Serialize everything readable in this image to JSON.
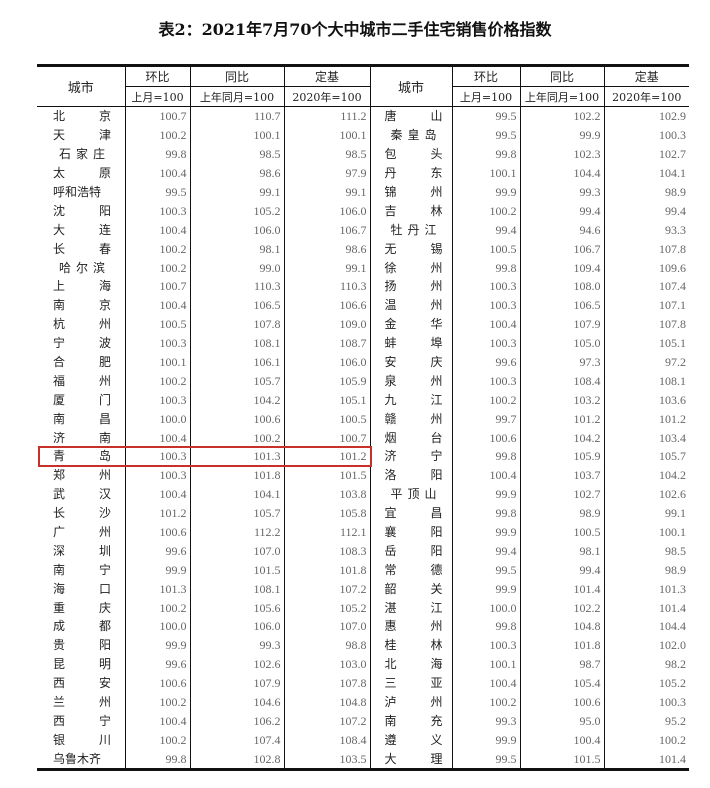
{
  "title": "表2：2021年7月70个大中城市二手住宅销售价格指数",
  "header": {
    "city": "城市",
    "mom": "环比",
    "mom_base": "上月=100",
    "yoy": "同比",
    "yoy_base": "上年同月=100",
    "fixed": "定基",
    "fixed_base": "2020年=100"
  },
  "highlight_color": "#c8302a",
  "highlighted_city": "青岛",
  "left": [
    {
      "city": "北京",
      "mom": "100.7",
      "yoy": "110.7",
      "fixed": "111.2"
    },
    {
      "city": "天津",
      "mom": "100.2",
      "yoy": "100.1",
      "fixed": "100.1"
    },
    {
      "city": "石家庄",
      "mom": "99.8",
      "yoy": "98.5",
      "fixed": "98.5"
    },
    {
      "city": "太原",
      "mom": "100.4",
      "yoy": "98.6",
      "fixed": "97.9"
    },
    {
      "city": "呼和浩特",
      "mom": "99.5",
      "yoy": "99.1",
      "fixed": "99.1"
    },
    {
      "city": "沈阳",
      "mom": "100.3",
      "yoy": "105.2",
      "fixed": "106.0"
    },
    {
      "city": "大连",
      "mom": "100.4",
      "yoy": "106.0",
      "fixed": "106.7"
    },
    {
      "city": "长春",
      "mom": "100.2",
      "yoy": "98.1",
      "fixed": "98.6"
    },
    {
      "city": "哈尔滨",
      "mom": "100.2",
      "yoy": "99.0",
      "fixed": "99.1"
    },
    {
      "city": "上海",
      "mom": "100.7",
      "yoy": "110.3",
      "fixed": "110.3"
    },
    {
      "city": "南京",
      "mom": "100.4",
      "yoy": "106.5",
      "fixed": "106.6"
    },
    {
      "city": "杭州",
      "mom": "100.5",
      "yoy": "107.8",
      "fixed": "109.0"
    },
    {
      "city": "宁波",
      "mom": "100.3",
      "yoy": "108.1",
      "fixed": "108.7"
    },
    {
      "city": "合肥",
      "mom": "100.1",
      "yoy": "106.1",
      "fixed": "106.0"
    },
    {
      "city": "福州",
      "mom": "100.2",
      "yoy": "105.7",
      "fixed": "105.9"
    },
    {
      "city": "厦门",
      "mom": "100.3",
      "yoy": "104.2",
      "fixed": "105.1"
    },
    {
      "city": "南昌",
      "mom": "100.0",
      "yoy": "100.6",
      "fixed": "100.5"
    },
    {
      "city": "济南",
      "mom": "100.4",
      "yoy": "100.2",
      "fixed": "100.7"
    },
    {
      "city": "青岛",
      "mom": "100.3",
      "yoy": "101.3",
      "fixed": "101.2"
    },
    {
      "city": "郑州",
      "mom": "100.3",
      "yoy": "101.8",
      "fixed": "101.5"
    },
    {
      "city": "武汉",
      "mom": "100.4",
      "yoy": "104.1",
      "fixed": "103.8"
    },
    {
      "city": "长沙",
      "mom": "101.2",
      "yoy": "105.7",
      "fixed": "105.8"
    },
    {
      "city": "广州",
      "mom": "100.6",
      "yoy": "112.2",
      "fixed": "112.1"
    },
    {
      "city": "深圳",
      "mom": "99.6",
      "yoy": "107.0",
      "fixed": "108.3"
    },
    {
      "city": "南宁",
      "mom": "99.9",
      "yoy": "101.5",
      "fixed": "101.8"
    },
    {
      "city": "海口",
      "mom": "101.3",
      "yoy": "108.1",
      "fixed": "107.2"
    },
    {
      "city": "重庆",
      "mom": "100.2",
      "yoy": "105.6",
      "fixed": "105.2"
    },
    {
      "city": "成都",
      "mom": "100.0",
      "yoy": "106.0",
      "fixed": "107.0"
    },
    {
      "city": "贵阳",
      "mom": "99.9",
      "yoy": "99.3",
      "fixed": "98.8"
    },
    {
      "city": "昆明",
      "mom": "99.6",
      "yoy": "102.6",
      "fixed": "103.0"
    },
    {
      "city": "西安",
      "mom": "100.6",
      "yoy": "107.9",
      "fixed": "107.8"
    },
    {
      "city": "兰州",
      "mom": "100.2",
      "yoy": "104.6",
      "fixed": "104.8"
    },
    {
      "city": "西宁",
      "mom": "100.4",
      "yoy": "106.2",
      "fixed": "107.2"
    },
    {
      "city": "银川",
      "mom": "100.2",
      "yoy": "107.4",
      "fixed": "108.4"
    },
    {
      "city": "乌鲁木齐",
      "mom": "99.8",
      "yoy": "102.8",
      "fixed": "103.5"
    }
  ],
  "right": [
    {
      "city": "唐山",
      "mom": "99.5",
      "yoy": "102.2",
      "fixed": "102.9"
    },
    {
      "city": "秦皇岛",
      "mom": "99.5",
      "yoy": "99.9",
      "fixed": "100.3"
    },
    {
      "city": "包头",
      "mom": "99.8",
      "yoy": "102.3",
      "fixed": "102.7"
    },
    {
      "city": "丹东",
      "mom": "100.1",
      "yoy": "104.4",
      "fixed": "104.1"
    },
    {
      "city": "锦州",
      "mom": "99.9",
      "yoy": "99.3",
      "fixed": "98.9"
    },
    {
      "city": "吉林",
      "mom": "100.2",
      "yoy": "99.4",
      "fixed": "99.4"
    },
    {
      "city": "牡丹江",
      "mom": "99.4",
      "yoy": "94.6",
      "fixed": "93.3"
    },
    {
      "city": "无锡",
      "mom": "100.5",
      "yoy": "106.7",
      "fixed": "107.8"
    },
    {
      "city": "徐州",
      "mom": "99.8",
      "yoy": "109.4",
      "fixed": "109.6"
    },
    {
      "city": "扬州",
      "mom": "100.3",
      "yoy": "108.0",
      "fixed": "107.4"
    },
    {
      "city": "温州",
      "mom": "100.3",
      "yoy": "106.5",
      "fixed": "107.1"
    },
    {
      "city": "金华",
      "mom": "100.4",
      "yoy": "107.9",
      "fixed": "107.8"
    },
    {
      "city": "蚌埠",
      "mom": "100.3",
      "yoy": "105.0",
      "fixed": "105.1"
    },
    {
      "city": "安庆",
      "mom": "99.6",
      "yoy": "97.3",
      "fixed": "97.2"
    },
    {
      "city": "泉州",
      "mom": "100.3",
      "yoy": "108.4",
      "fixed": "108.1"
    },
    {
      "city": "九江",
      "mom": "100.2",
      "yoy": "103.2",
      "fixed": "103.6"
    },
    {
      "city": "赣州",
      "mom": "99.7",
      "yoy": "101.2",
      "fixed": "101.2"
    },
    {
      "city": "烟台",
      "mom": "100.6",
      "yoy": "104.2",
      "fixed": "103.4"
    },
    {
      "city": "济宁",
      "mom": "99.8",
      "yoy": "105.9",
      "fixed": "105.7"
    },
    {
      "city": "洛阳",
      "mom": "100.4",
      "yoy": "103.7",
      "fixed": "104.2"
    },
    {
      "city": "平顶山",
      "mom": "99.9",
      "yoy": "102.7",
      "fixed": "102.6"
    },
    {
      "city": "宜昌",
      "mom": "99.8",
      "yoy": "98.9",
      "fixed": "99.1"
    },
    {
      "city": "襄阳",
      "mom": "99.9",
      "yoy": "100.5",
      "fixed": "100.1"
    },
    {
      "city": "岳阳",
      "mom": "99.4",
      "yoy": "98.1",
      "fixed": "98.5"
    },
    {
      "city": "常德",
      "mom": "99.5",
      "yoy": "99.4",
      "fixed": "98.9"
    },
    {
      "city": "韶关",
      "mom": "99.9",
      "yoy": "101.4",
      "fixed": "101.3"
    },
    {
      "city": "湛江",
      "mom": "100.0",
      "yoy": "102.2",
      "fixed": "101.4"
    },
    {
      "city": "惠州",
      "mom": "99.8",
      "yoy": "104.8",
      "fixed": "104.4"
    },
    {
      "city": "桂林",
      "mom": "100.3",
      "yoy": "101.8",
      "fixed": "102.0"
    },
    {
      "city": "北海",
      "mom": "100.1",
      "yoy": "98.7",
      "fixed": "98.2"
    },
    {
      "city": "三亚",
      "mom": "100.4",
      "yoy": "105.4",
      "fixed": "105.2"
    },
    {
      "city": "泸州",
      "mom": "100.2",
      "yoy": "100.6",
      "fixed": "100.3"
    },
    {
      "city": "南充",
      "mom": "99.3",
      "yoy": "95.0",
      "fixed": "95.2"
    },
    {
      "city": "遵义",
      "mom": "99.9",
      "yoy": "100.4",
      "fixed": "100.2"
    },
    {
      "city": "大理",
      "mom": "99.5",
      "yoy": "101.5",
      "fixed": "101.4"
    }
  ]
}
